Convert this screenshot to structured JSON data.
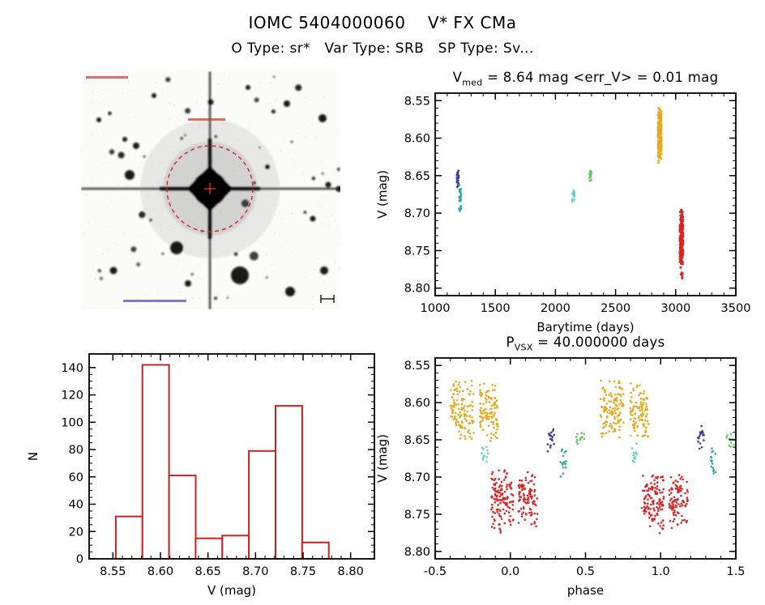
{
  "header": {
    "title": "IOMC 5404000060    V* FX CMa",
    "subtitle": "O Type: sr*   Var Type: SRB   SP Type: Sv..."
  },
  "colors": {
    "background": "#ffffff",
    "axis": "#000000",
    "hist_red": "#cf2020",
    "marker_red": "#d42222",
    "epoch_navy": "#3c3c9c",
    "epoch_teal": "#2fa8a8",
    "epoch_cyan": "#63cfcf",
    "epoch_green": "#5fc75f",
    "epoch_orange": "#e5a91e",
    "epoch_red": "#d92525"
  },
  "chart_data": [
    {
      "id": "lightcurve",
      "type": "scatter",
      "title": {
        "main": "V",
        "sub": "med",
        "rest": " = 8.64 mag <err_V> = 0.01 mag"
      },
      "v_med_mag": 8.64,
      "err_v_mag": 0.01,
      "xlabel": "Barytime (days)",
      "ylabel": "V (mag)",
      "xlim": [
        1000,
        3500
      ],
      "ylim": [
        8.54,
        8.81
      ],
      "y_axis_inverted": true,
      "xticks": [
        1000,
        1500,
        2000,
        2500,
        3000,
        3500
      ],
      "xtick_labels": [
        "1000",
        "1500",
        "2000",
        "2500",
        "3000",
        "3500"
      ],
      "yticks": [
        8.55,
        8.6,
        8.65,
        8.7,
        8.75,
        8.8
      ],
      "ytick_labels": [
        "8.55",
        "8.60",
        "8.65",
        "8.70",
        "8.75",
        "8.80"
      ],
      "x_minor_per_interval": 4,
      "y_minor_per_interval": 4,
      "grid": false,
      "series": [
        {
          "name": "epoch-1",
          "color_key": "epoch_navy",
          "clusters": [
            {
              "x": [
                1180,
                1196
              ],
              "y": [
                8.64,
                8.672
              ],
              "n": 22
            }
          ]
        },
        {
          "name": "epoch-2",
          "color_key": "epoch_teal",
          "clusters": [
            {
              "x": [
                1198,
                1216
              ],
              "y": [
                8.656,
                8.706
              ],
              "n": 26
            }
          ]
        },
        {
          "name": "epoch-3",
          "color_key": "epoch_cyan",
          "clusters": [
            {
              "x": [
                2140,
                2158
              ],
              "y": [
                8.664,
                8.69
              ],
              "n": 14
            }
          ]
        },
        {
          "name": "epoch-4",
          "color_key": "epoch_green",
          "clusters": [
            {
              "x": [
                2280,
                2298
              ],
              "y": [
                8.64,
                8.66
              ],
              "n": 12
            }
          ]
        },
        {
          "name": "epoch-5",
          "color_key": "epoch_orange",
          "clusters": [
            {
              "x": [
                2852,
                2882
              ],
              "y": [
                8.556,
                8.636
              ],
              "n": 230
            }
          ]
        },
        {
          "name": "epoch-6",
          "color_key": "epoch_red",
          "clusters": [
            {
              "x": [
                3034,
                3062
              ],
              "y": [
                8.688,
                8.775
              ],
              "n": 260
            },
            {
              "x": [
                3040,
                3058
              ],
              "y": [
                8.776,
                8.79
              ],
              "n": 6
            }
          ]
        }
      ]
    },
    {
      "id": "histogram",
      "type": "bar",
      "title": "",
      "xlabel": "V (mag)",
      "ylabel": "N",
      "xlim": [
        8.525,
        8.825
      ],
      "ylim": [
        0,
        150
      ],
      "y_axis_inverted": false,
      "xticks": [
        8.55,
        8.6,
        8.65,
        8.7,
        8.75,
        8.8
      ],
      "xtick_labels": [
        "8.55",
        "8.60",
        "8.65",
        "8.70",
        "8.75",
        "8.80"
      ],
      "yticks": [
        0,
        20,
        40,
        60,
        80,
        100,
        120,
        140
      ],
      "ytick_labels": [
        "0",
        "20",
        "40",
        "60",
        "80",
        "100",
        "120",
        "140"
      ],
      "x_minor_per_interval": 4,
      "y_minor_per_interval": 3,
      "grid": false,
      "bin_edges": [
        8.553,
        8.581,
        8.609,
        8.637,
        8.665,
        8.693,
        8.721,
        8.749,
        8.777
      ],
      "counts": [
        31,
        142,
        61,
        15,
        17,
        79,
        112,
        12
      ],
      "bar_fill": "#ffffff",
      "bar_stroke_key": "hist_red"
    },
    {
      "id": "phase",
      "type": "scatter",
      "title": {
        "main": "P",
        "sub": "VSX",
        "rest": " = 40.000000 days"
      },
      "period_days": 40.0,
      "xlabel": "phase",
      "ylabel": "V (mag)",
      "xlim": [
        -0.5,
        1.5
      ],
      "ylim": [
        8.54,
        8.81
      ],
      "y_axis_inverted": true,
      "xticks": [
        -0.5,
        0.0,
        0.5,
        1.0,
        1.5
      ],
      "xtick_labels": [
        "-0.5",
        "0.0",
        "0.5",
        "1.0",
        "1.5"
      ],
      "yticks": [
        8.55,
        8.6,
        8.65,
        8.7,
        8.75,
        8.8
      ],
      "ytick_labels": [
        "8.55",
        "8.60",
        "8.65",
        "8.70",
        "8.75",
        "8.80"
      ],
      "x_minor_per_interval": 4,
      "y_minor_per_interval": 4,
      "grid": false,
      "series": [
        {
          "name": "epoch-1",
          "color_key": "epoch_navy",
          "clusters": [
            {
              "x": [
                0.248,
                0.292
              ],
              "y": [
                8.624,
                8.672
              ],
              "n": 18
            },
            {
              "x": [
                1.248,
                1.292
              ],
              "y": [
                8.624,
                8.672
              ],
              "n": 18
            }
          ]
        },
        {
          "name": "epoch-2",
          "color_key": "epoch_teal",
          "clusters": [
            {
              "x": [
                0.332,
                0.372
              ],
              "y": [
                8.656,
                8.708
              ],
              "n": 16
            },
            {
              "x": [
                1.332,
                1.372
              ],
              "y": [
                8.656,
                8.708
              ],
              "n": 16
            }
          ]
        },
        {
          "name": "epoch-3",
          "color_key": "epoch_cyan",
          "clusters": [
            {
              "x": [
                -0.192,
                -0.148
              ],
              "y": [
                8.654,
                8.684
              ],
              "n": 12
            },
            {
              "x": [
                0.808,
                0.852
              ],
              "y": [
                8.654,
                8.684
              ],
              "n": 12
            }
          ]
        },
        {
          "name": "epoch-4",
          "color_key": "epoch_green",
          "clusters": [
            {
              "x": [
                0.438,
                0.492
              ],
              "y": [
                8.638,
                8.663
              ],
              "n": 12
            },
            {
              "x": [
                1.438,
                1.492
              ],
              "y": [
                8.638,
                8.663
              ],
              "n": 12
            }
          ]
        },
        {
          "name": "epoch-5",
          "color_key": "epoch_orange",
          "clusters": [
            {
              "x": [
                -0.402,
                -0.242
              ],
              "y": [
                8.566,
                8.652
              ],
              "n": 120
            },
            {
              "x": [
                -0.205,
                -0.078
              ],
              "y": [
                8.57,
                8.655
              ],
              "n": 100
            },
            {
              "x": [
                0.598,
                0.758
              ],
              "y": [
                8.566,
                8.652
              ],
              "n": 120
            },
            {
              "x": [
                0.795,
                0.922
              ],
              "y": [
                8.57,
                8.655
              ],
              "n": 100
            }
          ]
        },
        {
          "name": "epoch-6",
          "color_key": "epoch_red",
          "clusters": [
            {
              "x": [
                -0.128,
                0.022
              ],
              "y": [
                8.686,
                8.776
              ],
              "n": 130
            },
            {
              "x": [
                0.052,
                0.182
              ],
              "y": [
                8.69,
                8.772
              ],
              "n": 100
            },
            {
              "x": [
                0.872,
                1.022
              ],
              "y": [
                8.686,
                8.776
              ],
              "n": 130
            },
            {
              "x": [
                1.052,
                1.182
              ],
              "y": [
                8.69,
                8.772
              ],
              "n": 100
            }
          ]
        }
      ]
    }
  ]
}
